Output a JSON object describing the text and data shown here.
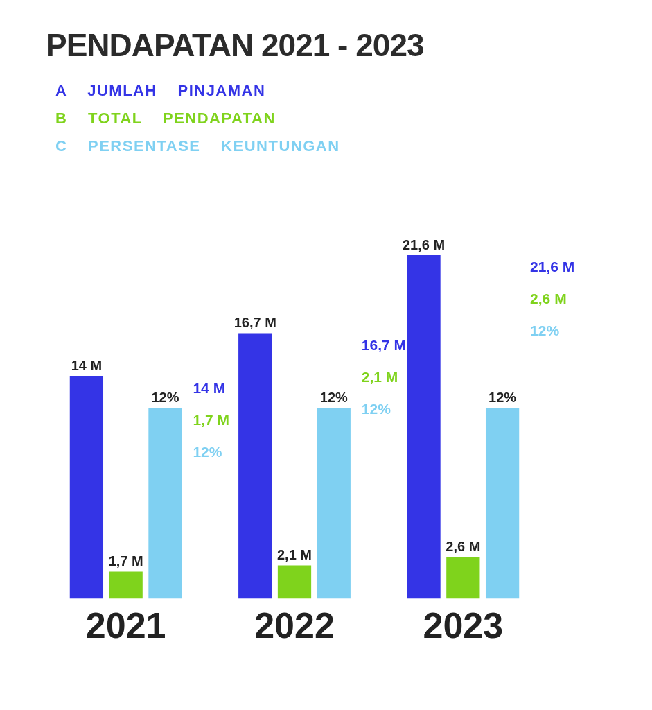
{
  "chart_data": {
    "type": "bar",
    "title": "PENDAPATAN 2021 - 2023",
    "categories": [
      "2021",
      "2022",
      "2023"
    ],
    "legend": "top left",
    "grid": false,
    "tick_labels": "x",
    "series": [
      {
        "name": "A JUMLAH PINJAMAN",
        "color": "#3434e6",
        "values": [
          14,
          16.7,
          21.6
        ],
        "value_labels": [
          "14 M",
          "16,7 M",
          "21,6 M"
        ]
      },
      {
        "name": "B TOTAL PENDAPATAN",
        "color": "#7fd31c",
        "values": [
          1.7,
          2.1,
          2.6
        ],
        "value_labels": [
          "1,7 M",
          "2,1 M",
          "2,6 M"
        ]
      },
      {
        "name": "C PERSENTASE KEUNTUNGAN",
        "color": "#7fd0f2",
        "values": [
          12,
          12,
          12
        ],
        "value_labels": [
          "12%",
          "12%",
          "12%"
        ]
      }
    ],
    "annotations": [
      "14 M",
      "1,7 M",
      "12%",
      "16,7 M",
      "2,1 M",
      "12%",
      "21,6 M",
      "2,6 M",
      "12%"
    ]
  }
}
